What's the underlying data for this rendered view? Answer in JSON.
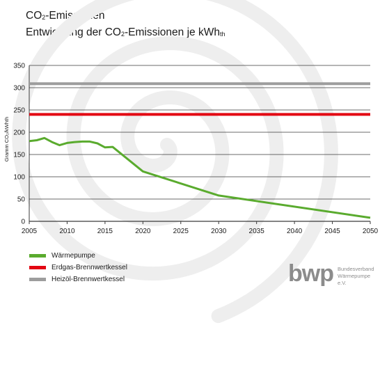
{
  "title": {
    "line1_prefix": "CO",
    "line1_sub": "2",
    "line1_suffix": "-Emissionen",
    "line2_prefix": "Entwicklung der CO",
    "line2_sub": "2",
    "line2_mid": "-Emissionen je kWh",
    "line2_sub2": "th"
  },
  "chart_data": {
    "type": "line",
    "ylabel": "Gramm CO₂/kWhth",
    "ylim": [
      0,
      350
    ],
    "xlim": [
      2005,
      2050
    ],
    "yticks": [
      0,
      50,
      100,
      150,
      200,
      250,
      300,
      350
    ],
    "xticks": [
      2005,
      2010,
      2015,
      2020,
      2025,
      2030,
      2035,
      2040,
      2045,
      2050
    ],
    "grid": true,
    "legend_position": "bottom-left",
    "series": [
      {
        "name": "Wärmepumpe",
        "color": "#5aab2e",
        "x": [
          2005,
          2006,
          2007,
          2008,
          2009,
          2010,
          2011,
          2012,
          2013,
          2014,
          2015,
          2016,
          2020,
          2030,
          2050
        ],
        "y": [
          180,
          182,
          187,
          178,
          171,
          176,
          178,
          179,
          179,
          175,
          166,
          167,
          112,
          58,
          8
        ]
      },
      {
        "name": "Erdgas-Brennwertkessel",
        "color": "#e30613",
        "x": [
          2005,
          2050
        ],
        "y": [
          240,
          240
        ]
      },
      {
        "name": "Heizöl-Brennwertkessel",
        "color": "#9d9d9d",
        "x": [
          2005,
          2050
        ],
        "y": [
          309,
          309
        ]
      }
    ]
  },
  "logo": {
    "mark": "bwp",
    "line1": "Bundesverband",
    "line2": "Wärmepumpe e.V."
  },
  "colors": {
    "watermark": "#eeeeee",
    "axis": "#1a1a1a"
  }
}
